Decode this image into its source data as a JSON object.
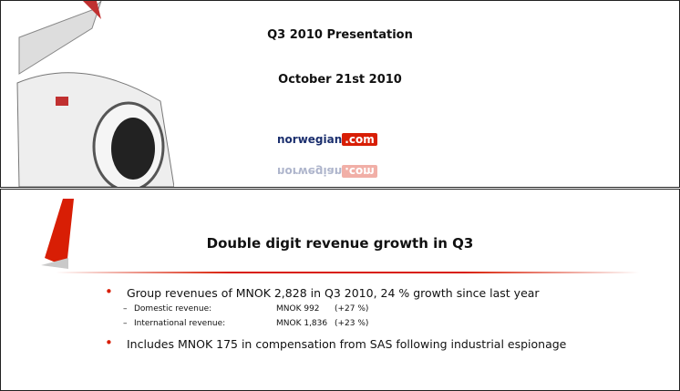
{
  "slides": [
    {
      "title": "Q3 2010 Presentation",
      "subtitle": "October 21st 2010",
      "logo": {
        "name": "norwegian",
        "domain": ".com"
      }
    },
    {
      "title": "Double digit revenue growth in Q3",
      "bullets": [
        {
          "text": "Group revenues of MNOK 2,828 in Q3 2010, 24 % growth since last year",
          "items": [
            {
              "label": "Domestic revenue:",
              "value": "MNOK 992",
              "change": "(+27 %)"
            },
            {
              "label": "International revenue:",
              "value": "MNOK 1,836",
              "change": "(+23 %)"
            }
          ]
        },
        {
          "text": "Includes MNOK 175 in compensation from SAS following industrial espionage",
          "items": []
        }
      ]
    }
  ]
}
